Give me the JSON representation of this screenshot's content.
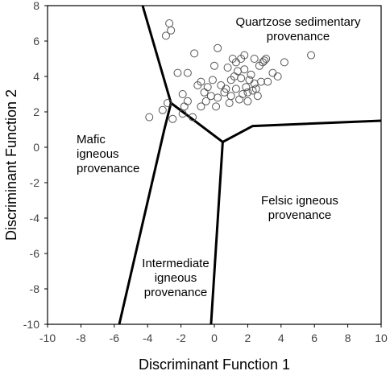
{
  "chart_data": {
    "type": "scatter",
    "xlabel": "Discriminant Function 1",
    "ylabel": "Discriminant Function 2",
    "xlim": [
      -10,
      10
    ],
    "ylim": [
      -10,
      8
    ],
    "xticks": [
      "-10",
      "-8",
      "-6",
      "-4",
      "-2",
      "0",
      "2",
      "4",
      "6",
      "8",
      "10"
    ],
    "yticks": [
      "-10",
      "-8",
      "-6",
      "-4",
      "-2",
      "0",
      "2",
      "4",
      "6",
      "8"
    ],
    "grid": false,
    "region_labels": [
      {
        "lines": [
          "Quartzose sedimentary",
          "provenance"
        ]
      },
      {
        "lines": [
          "Mafic",
          "igneous",
          "provenance"
        ]
      },
      {
        "lines": [
          "Felsic igneous",
          "provenance"
        ]
      },
      {
        "lines": [
          "Intermediate",
          "igneous",
          "provenance"
        ]
      }
    ],
    "boundaries": [
      {
        "x": [
          -4.3,
          -2.6,
          0.5,
          2.3,
          10
        ],
        "y": [
          8,
          2.5,
          0.3,
          1.2,
          1.5
        ]
      },
      {
        "x": [
          -2.6,
          -3.0,
          -5.7
        ],
        "y": [
          2.5,
          1.0,
          -10
        ]
      },
      {
        "x": [
          0.5,
          -0.2
        ],
        "y": [
          0.3,
          -10
        ]
      }
    ],
    "points": [
      [
        -2.7,
        7.0
      ],
      [
        -2.9,
        6.3
      ],
      [
        -2.6,
        6.6
      ],
      [
        -1.2,
        5.3
      ],
      [
        -3.9,
        1.7
      ],
      [
        -3.1,
        2.1
      ],
      [
        -2.8,
        2.5
      ],
      [
        -2.5,
        1.6
      ],
      [
        -1.8,
        2.3
      ],
      [
        -1.9,
        1.9
      ],
      [
        -1.6,
        2.6
      ],
      [
        -1.3,
        1.7
      ],
      [
        -0.8,
        2.3
      ],
      [
        -0.5,
        2.6
      ],
      [
        -1.9,
        3.0
      ],
      [
        -2.2,
        4.2
      ],
      [
        -1.6,
        4.2
      ],
      [
        -0.8,
        3.7
      ],
      [
        -0.6,
        3.1
      ],
      [
        -0.4,
        3.4
      ],
      [
        -0.2,
        2.9
      ],
      [
        -0.1,
        3.8
      ],
      [
        0.2,
        2.8
      ],
      [
        0.4,
        3.5
      ],
      [
        0.6,
        3.1
      ],
      [
        0.7,
        3.3
      ],
      [
        0.9,
        2.5
      ],
      [
        1.0,
        2.9
      ],
      [
        1.2,
        4.0
      ],
      [
        1.3,
        3.3
      ],
      [
        1.4,
        4.3
      ],
      [
        1.5,
        2.7
      ],
      [
        1.6,
        3.9
      ],
      [
        1.7,
        3.0
      ],
      [
        1.8,
        4.4
      ],
      [
        1.9,
        3.4
      ],
      [
        2.0,
        2.6
      ],
      [
        2.1,
        3.8
      ],
      [
        2.2,
        4.1
      ],
      [
        2.3,
        3.2
      ],
      [
        2.4,
        3.6
      ],
      [
        2.5,
        3.3
      ],
      [
        2.6,
        2.9
      ],
      [
        2.7,
        4.6
      ],
      [
        2.8,
        3.7
      ],
      [
        3.0,
        4.9
      ],
      [
        3.2,
        3.7
      ],
      [
        3.5,
        4.2
      ],
      [
        3.8,
        4.0
      ],
      [
        0.0,
        4.6
      ],
      [
        0.8,
        4.5
      ],
      [
        1.1,
        5.0
      ],
      [
        1.3,
        4.8
      ],
      [
        1.6,
        5.0
      ],
      [
        1.8,
        5.2
      ],
      [
        2.4,
        5.0
      ],
      [
        2.9,
        4.8
      ],
      [
        3.1,
        5.0
      ],
      [
        4.2,
        4.8
      ],
      [
        5.8,
        5.2
      ],
      [
        0.2,
        5.6
      ],
      [
        2.0,
        3.1
      ],
      [
        1.0,
        3.8
      ],
      [
        0.1,
        2.3
      ],
      [
        -1.0,
        3.5
      ]
    ]
  }
}
